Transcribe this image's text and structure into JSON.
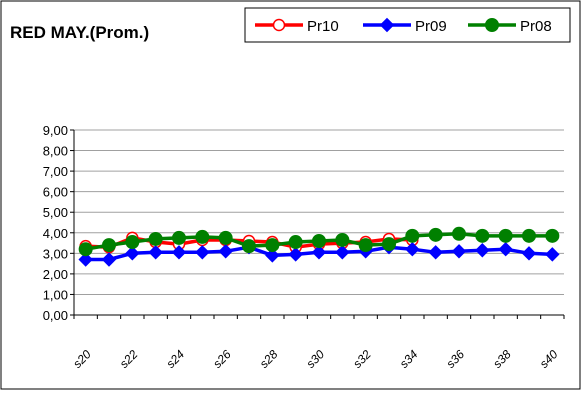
{
  "chart_data": {
    "type": "line",
    "title": "RED MAY.(Prom.)",
    "xlabel": "",
    "ylabel": "",
    "ylim": [
      0,
      9
    ],
    "yticks": [
      "0,00",
      "1,00",
      "2,00",
      "3,00",
      "4,00",
      "5,00",
      "6,00",
      "7,00",
      "8,00",
      "9,00"
    ],
    "x_tick_labels": [
      "s20",
      "s22",
      "s24",
      "s26",
      "s28",
      "s30",
      "s32",
      "s34",
      "s36",
      "s38",
      "s40"
    ],
    "grid": "horizontal",
    "legend_position": "top-right",
    "categories": [
      "s20",
      "s21",
      "s22",
      "s23",
      "s24",
      "s25",
      "s26",
      "s27",
      "s28",
      "s29",
      "s30",
      "s31",
      "s32",
      "s33",
      "s34",
      "s35",
      "s36",
      "s37",
      "s38",
      "s39",
      "s40"
    ],
    "series": [
      {
        "name": "Pr10",
        "color": "#ff0000",
        "marker": "circle-open",
        "values": [
          3.35,
          3.3,
          3.75,
          3.55,
          3.45,
          3.65,
          3.65,
          3.6,
          3.55,
          3.3,
          3.45,
          3.5,
          3.55,
          3.7,
          3.65,
          null,
          null,
          null,
          null,
          null,
          null
        ]
      },
      {
        "name": "Pr09",
        "color": "#0000ff",
        "marker": "diamond",
        "values": [
          2.7,
          2.7,
          3.0,
          3.05,
          3.05,
          3.05,
          3.1,
          3.3,
          2.9,
          2.95,
          3.05,
          3.05,
          3.1,
          3.3,
          3.2,
          3.05,
          3.1,
          3.15,
          3.2,
          3.0,
          2.95
        ]
      },
      {
        "name": "Pr08",
        "color": "#008000",
        "marker": "circle",
        "values": [
          3.2,
          3.4,
          3.55,
          3.7,
          3.75,
          3.8,
          3.75,
          3.35,
          3.4,
          3.55,
          3.6,
          3.65,
          3.4,
          3.45,
          3.85,
          3.9,
          3.95,
          3.85,
          3.85,
          3.85,
          3.85
        ]
      }
    ]
  }
}
